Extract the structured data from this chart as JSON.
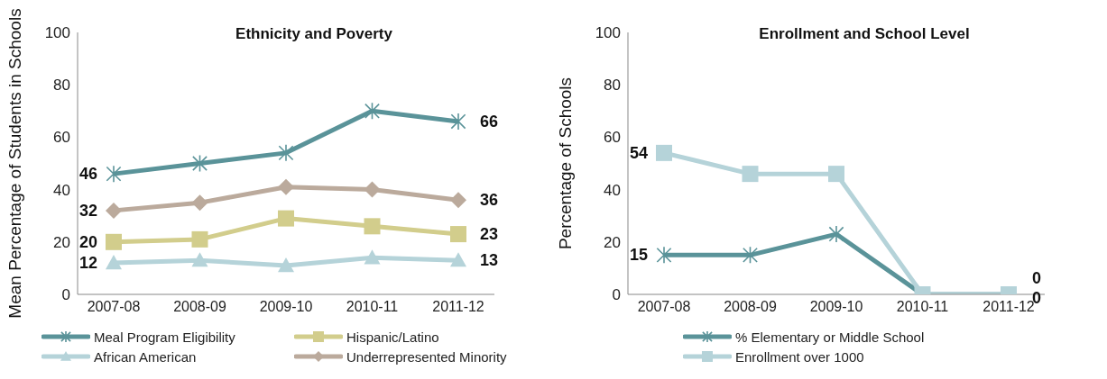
{
  "chart_data": [
    {
      "type": "line",
      "title": "Ethnicity and Poverty",
      "ylabel": "Mean Percentage of Students in Schools",
      "categories": [
        "2007-08",
        "2008-09",
        "2009-10",
        "2010-11",
        "2011-12"
      ],
      "ylim": [
        0,
        100
      ],
      "yticks": [
        0,
        20,
        40,
        60,
        80,
        100
      ],
      "grid": false,
      "legend": "bottom",
      "series": [
        {
          "name": "Meal Program Eligibility",
          "color": "#5a9399",
          "marker": "cross",
          "values": [
            46,
            50,
            54,
            70,
            66
          ],
          "value_labels": [
            "46",
            null,
            null,
            null,
            "66"
          ]
        },
        {
          "name": "Hispanic/Latino",
          "color": "#d2cd8c",
          "marker": "square",
          "values": [
            20,
            21,
            29,
            26,
            23
          ],
          "value_labels": [
            "20",
            null,
            null,
            null,
            "23"
          ]
        },
        {
          "name": "African American",
          "color": "#b5d3d9",
          "marker": "triangle",
          "values": [
            12,
            13,
            11,
            14,
            13
          ],
          "value_labels": [
            "12",
            null,
            null,
            null,
            "13"
          ]
        },
        {
          "name": "Underrepresented Minority",
          "color": "#bbaa9c",
          "marker": "diamond",
          "values": [
            32,
            35,
            41,
            40,
            36
          ],
          "value_labels": [
            "32",
            null,
            null,
            null,
            "36"
          ]
        }
      ]
    },
    {
      "type": "line",
      "title": "Enrollment and School Level",
      "ylabel": "Percentage of Schools",
      "categories": [
        "2007-08",
        "2008-09",
        "2009-10",
        "2010-11",
        "2011-12"
      ],
      "ylim": [
        0,
        100
      ],
      "yticks": [
        0,
        20,
        40,
        60,
        80,
        100
      ],
      "grid": false,
      "legend": "bottom",
      "series": [
        {
          "name": "% Elementary or Middle School",
          "color": "#5a9399",
          "marker": "cross",
          "values": [
            15,
            15,
            23,
            0,
            0
          ],
          "value_labels": [
            "15",
            null,
            null,
            null,
            "0"
          ]
        },
        {
          "name": "Enrollment over 1000",
          "color": "#b5d3d9",
          "marker": "square",
          "values": [
            54,
            46,
            46,
            0,
            0
          ],
          "value_labels": [
            "54",
            null,
            null,
            null,
            "0"
          ]
        }
      ]
    }
  ]
}
